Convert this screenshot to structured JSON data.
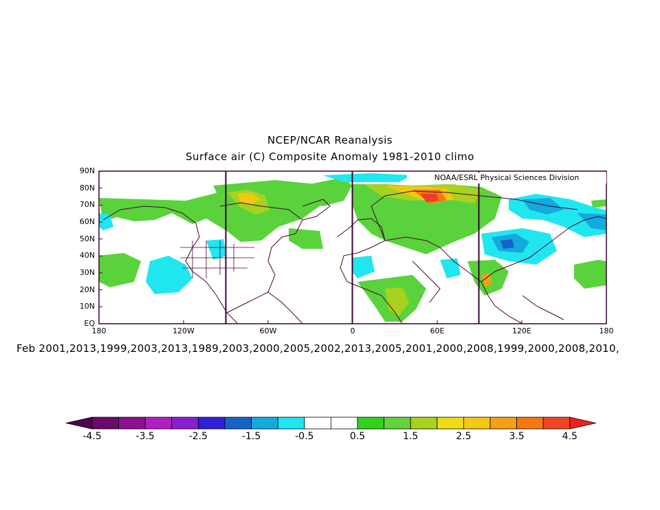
{
  "title": "NCEP/NCAR Reanalysis",
  "subtitle": "Surface air (C) Composite Anomaly 1981-2010 climo",
  "credit": "NOAA/ESRL Physical Sciences Division",
  "caption": "Feb 2001,2013,1999,2003,2013,1989,2003,2000,2005,2002,2013,2005,2001,2000,2008,1999,2000,2008,2010,",
  "map": {
    "lat_labels": [
      "90N",
      "80N",
      "70N",
      "60N",
      "50N",
      "40N",
      "30N",
      "20N",
      "10N",
      "EQ"
    ],
    "lon_labels": [
      "180",
      "120W",
      "60W",
      "0",
      "60E",
      "120E",
      "180"
    ],
    "lat_range": [
      0,
      90
    ],
    "lon_range": [
      -180,
      180
    ],
    "reference_meridians": [
      -90,
      0,
      90
    ],
    "colorbar_levels": [
      "-4.5",
      "-3.5",
      "-2.5",
      "-1.5",
      "-0.5",
      "0.5",
      "1.5",
      "2.5",
      "3.5",
      "4.5"
    ],
    "colorbar_colors": [
      "#6a0a6a",
      "#8c1090",
      "#b020c0",
      "#8820d0",
      "#3020d8",
      "#1464c8",
      "#14aadc",
      "#20e6f0",
      "#ffffff",
      "#ffffff",
      "#32d21e",
      "#64d23c",
      "#a8d21e",
      "#f0dc14",
      "#f5c814",
      "#f5a014",
      "#f57814",
      "#f04628"
    ],
    "colorbar_low_color": "#50064a",
    "colorbar_high_color": "#f02020"
  }
}
